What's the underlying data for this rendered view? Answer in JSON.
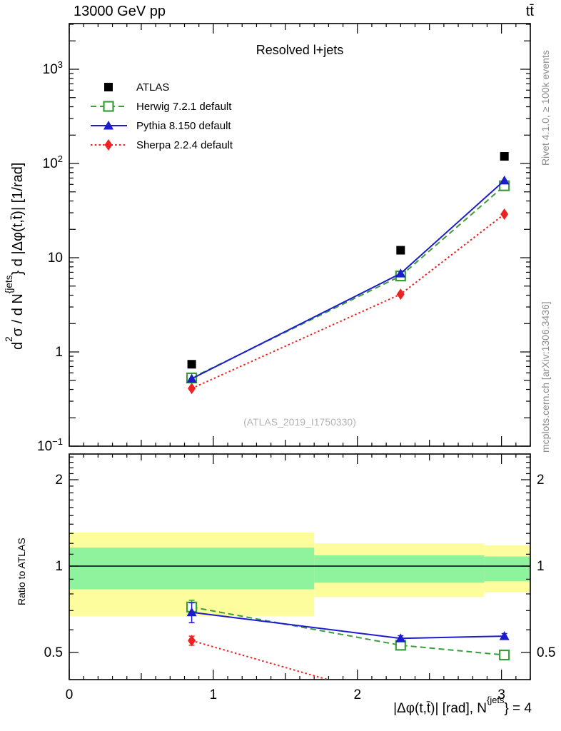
{
  "header": {
    "left": "13000 GeV pp",
    "right": "tt̄"
  },
  "side_notes": {
    "top": "Rivet 4.1.0, ≥ 100k events",
    "bottom": "mcplots.cern.ch [arXiv:1306.3436]"
  },
  "watermark": "(ATLAS_2019_I1750330)",
  "labels": {
    "ratio_ylabel": "Ratio to ATLAS",
    "ylabel_parts": [
      {
        "t": "d"
      },
      {
        "s": "2"
      },
      {
        "t": "σ /  d N"
      },
      {
        "s": "{jets"
      },
      {
        "t": "} d |Δφ(t,t̄)| [1/rad]"
      }
    ],
    "xlabel_parts": [
      {
        "t": "|Δφ(t,t̄)| [rad], N"
      },
      {
        "s": "{jets"
      },
      {
        "t": "} = 4"
      }
    ]
  },
  "colors": {
    "band_outer": "#fdfd9d",
    "band_inner": "#8ff29c",
    "frame": "#000000",
    "side_text": "#8c8c8c",
    "watermark": "#b4b4b4"
  },
  "chart_data": {
    "type": "line",
    "title": "Resolved l+jets",
    "xlabel": "|Δφ(t,t̄)| [rad], N^{jets} = 4",
    "ylabel": "d²σ / d N^{jets} d |Δφ(t,t̄)| [1/rad]",
    "ylabel_ratio": "Ratio to ATLAS",
    "y_scale": "log",
    "x_range": [
      0,
      3.2
    ],
    "y_range_main": [
      0.1,
      3000
    ],
    "y_range_ratio": [
      0.4,
      2.46
    ],
    "x_ticks": [
      0,
      1,
      2,
      3
    ],
    "y_ticks_main": [
      1000,
      100,
      10,
      1,
      0.1
    ],
    "y_ticks_ratio": [
      2,
      1,
      0.5
    ],
    "x": [
      0.85,
      2.3,
      3.02
    ],
    "series": [
      {
        "name": "ATLAS",
        "color": "#000000",
        "marker": "filled-square",
        "line": "none",
        "values": [
          0.74,
          12,
          119
        ]
      },
      {
        "name": "Herwig 7.2.1 default",
        "color": "#3b9c3b",
        "marker": "open-square",
        "line": "dashed",
        "values": [
          0.53,
          6.4,
          58
        ],
        "ratio": [
          0.72,
          0.53,
          0.49
        ],
        "ratio_err": [
          0.04,
          0.012,
          0.012
        ]
      },
      {
        "name": "Pythia 8.150 default",
        "color": "#1c1ccd",
        "marker": "filled-triangle",
        "line": "solid",
        "values": [
          0.52,
          6.8,
          66
        ],
        "ratio": [
          0.69,
          0.56,
          0.57
        ],
        "ratio_err": [
          0.055,
          0.012,
          0.012
        ]
      },
      {
        "name": "Sherpa 2.2.4 default",
        "color": "#ee2222",
        "marker": "filled-diamond",
        "line": "dotted",
        "values": [
          0.41,
          4.1,
          29
        ],
        "ratio": [
          0.55,
          0.34,
          0.24
        ],
        "ratio_err": [
          0.02,
          0,
          0
        ]
      }
    ],
    "ratio_reference": 1,
    "ratio_bands": [
      {
        "x0": 0.0,
        "x1": 1.7,
        "yellow": [
          0.67,
          1.31
        ],
        "green": [
          0.83,
          1.16
        ]
      },
      {
        "x0": 1.7,
        "x1": 2.88,
        "yellow": [
          0.78,
          1.2
        ],
        "green": [
          0.875,
          1.09
        ]
      },
      {
        "x0": 2.88,
        "x1": 3.2,
        "yellow": [
          0.81,
          1.18
        ],
        "green": [
          0.885,
          1.08
        ]
      }
    ],
    "legend_position": "top-left",
    "grid": false
  }
}
